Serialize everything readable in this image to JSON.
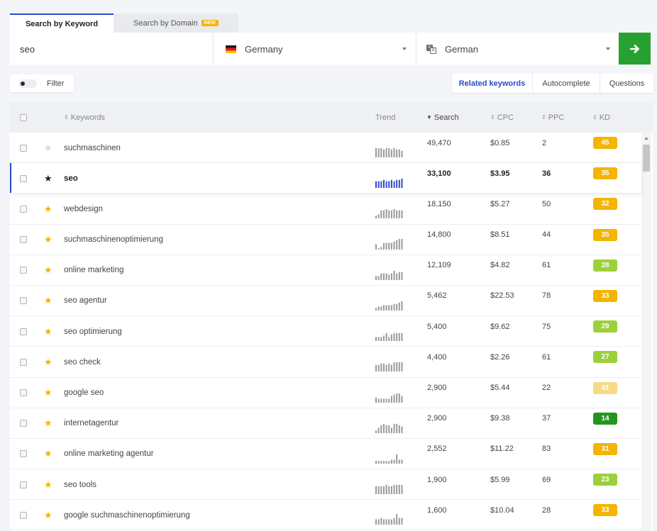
{
  "tabs": {
    "keyword": "Search by Keyword",
    "domain": "Search by Domain",
    "domain_badge": "NEW"
  },
  "search": {
    "keyword_value": "seo",
    "country": "Germany",
    "language": "German"
  },
  "filter": {
    "label": "Filter"
  },
  "subtabs": {
    "related": "Related keywords",
    "autocomplete": "Autocomplete",
    "questions": "Questions"
  },
  "columns": {
    "keywords": "Keywords",
    "trend": "Trend",
    "search": "Search",
    "cpc": "CPC",
    "ppc": "PPC",
    "kd": "KD"
  },
  "colors": {
    "accent": "#2b4ac8",
    "go_button": "#27a12f",
    "star_on": "#f5b400",
    "kd_orange": "#f5b400",
    "kd_lightgreen": "#9bd03b",
    "kd_pale": "#f7da86",
    "kd_darkgreen": "#23951f"
  },
  "rows": [
    {
      "keyword": "suchmaschinen",
      "starred": false,
      "search": "49,470",
      "cpc": "$0.85",
      "ppc": "2",
      "kd": "45",
      "kd_color": "#f5b400",
      "trend": [
        7,
        7,
        7,
        6,
        7,
        7,
        6,
        7,
        6,
        6,
        5
      ]
    },
    {
      "keyword": "seo",
      "starred": true,
      "search": "33,100",
      "cpc": "$3.95",
      "ppc": "36",
      "kd": "35",
      "kd_color": "#f5b400",
      "trend": [
        5,
        5,
        5,
        6,
        5,
        5,
        6,
        5,
        6,
        6,
        7
      ],
      "selected": true
    },
    {
      "keyword": "webdesign",
      "starred": true,
      "search": "18,150",
      "cpc": "$5.27",
      "ppc": "50",
      "kd": "32",
      "kd_color": "#f5b400",
      "trend": [
        2,
        3,
        6,
        6,
        7,
        6,
        6,
        7,
        6,
        6,
        6
      ]
    },
    {
      "keyword": "suchmaschinenoptimierung",
      "starred": true,
      "search": "14,800",
      "cpc": "$8.51",
      "ppc": "44",
      "kd": "35",
      "kd_color": "#f5b400",
      "trend": [
        4,
        1,
        2,
        5,
        5,
        5,
        5,
        6,
        7,
        8,
        8
      ]
    },
    {
      "keyword": "online marketing",
      "starred": true,
      "search": "12,109",
      "cpc": "$4.82",
      "ppc": "61",
      "kd": "28",
      "kd_color": "#9bd03b",
      "trend": [
        3,
        3,
        5,
        5,
        5,
        4,
        5,
        7,
        5,
        6,
        6
      ]
    },
    {
      "keyword": "seo agentur",
      "starred": true,
      "search": "5,462",
      "cpc": "$22.53",
      "ppc": "78",
      "kd": "33",
      "kd_color": "#f5b400",
      "trend": [
        2,
        3,
        3,
        4,
        4,
        4,
        4,
        5,
        5,
        6,
        7
      ]
    },
    {
      "keyword": "seo optimierung",
      "starred": true,
      "search": "5,400",
      "cpc": "$9.62",
      "ppc": "75",
      "kd": "29",
      "kd_color": "#9bd03b",
      "trend": [
        3,
        3,
        3,
        4,
        6,
        3,
        5,
        6,
        6,
        6,
        6
      ]
    },
    {
      "keyword": "seo check",
      "starred": true,
      "search": "4,400",
      "cpc": "$2.26",
      "ppc": "61",
      "kd": "27",
      "kd_color": "#9bd03b",
      "trend": [
        5,
        5,
        6,
        6,
        5,
        6,
        5,
        7,
        7,
        7,
        7
      ]
    },
    {
      "keyword": "google seo",
      "starred": true,
      "search": "2,900",
      "cpc": "$5.44",
      "ppc": "22",
      "kd": "41",
      "kd_color": "#f7da86",
      "trend": [
        4,
        3,
        3,
        3,
        3,
        3,
        5,
        6,
        7,
        7,
        5
      ]
    },
    {
      "keyword": "internetagentur",
      "starred": true,
      "search": "2,900",
      "cpc": "$9.38",
      "ppc": "37",
      "kd": "14",
      "kd_color": "#23951f",
      "trend": [
        2,
        4,
        6,
        7,
        6,
        6,
        4,
        7,
        7,
        6,
        5
      ]
    },
    {
      "keyword": "online marketing agentur",
      "starred": true,
      "search": "2,552",
      "cpc": "$11.22",
      "ppc": "83",
      "kd": "31",
      "kd_color": "#f5b400",
      "trend": [
        2,
        2,
        2,
        2,
        2,
        2,
        3,
        3,
        7,
        3,
        3
      ]
    },
    {
      "keyword": "seo tools",
      "starred": true,
      "search": "1,900",
      "cpc": "$5.99",
      "ppc": "69",
      "kd": "23",
      "kd_color": "#9bd03b",
      "trend": [
        6,
        6,
        6,
        6,
        7,
        6,
        6,
        7,
        7,
        7,
        7
      ]
    },
    {
      "keyword": "google suchmaschinenoptimierung",
      "starred": true,
      "search": "1,600",
      "cpc": "$10.04",
      "ppc": "28",
      "kd": "33",
      "kd_color": "#f5b400",
      "trend": [
        4,
        4,
        5,
        4,
        4,
        4,
        4,
        5,
        8,
        5,
        5
      ]
    }
  ]
}
